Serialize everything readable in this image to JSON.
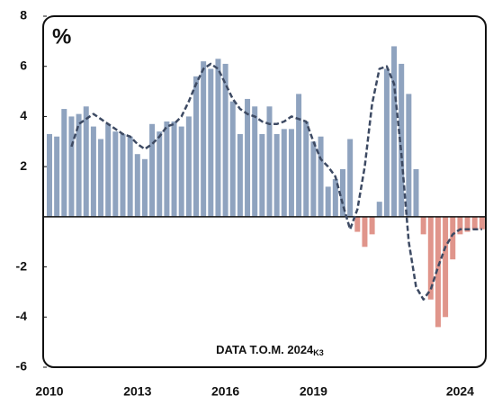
{
  "chart_data": {
    "type": "bar",
    "unit_label": "%",
    "annotation": "DATA T.O.M. 2024",
    "annotation_sub": "K3",
    "categories": [
      "2010",
      null,
      null,
      null,
      null,
      null,
      null,
      null,
      null,
      null,
      null,
      null,
      "2013",
      null,
      null,
      null,
      null,
      null,
      null,
      null,
      null,
      null,
      null,
      null,
      "2016",
      null,
      null,
      null,
      null,
      null,
      null,
      null,
      null,
      null,
      null,
      null,
      "2019",
      null,
      null,
      null,
      null,
      null,
      null,
      null,
      null,
      null,
      null,
      null,
      null,
      null,
      null,
      null,
      null,
      null,
      null,
      null,
      "2024",
      null,
      null,
      null
    ],
    "values": [
      3.3,
      3.2,
      4.3,
      4.0,
      4.1,
      4.4,
      3.6,
      3.1,
      3.7,
      3.4,
      3.3,
      3.2,
      2.5,
      2.3,
      3.7,
      3.4,
      3.8,
      3.8,
      3.6,
      4.0,
      5.6,
      6.2,
      5.9,
      6.3,
      6.1,
      4.6,
      3.3,
      4.7,
      4.4,
      3.3,
      4.4,
      3.3,
      3.5,
      3.5,
      4.9,
      3.8,
      3.0,
      3.2,
      1.2,
      1.5,
      1.9,
      3.1,
      -0.6,
      -1.2,
      -0.7,
      0.6,
      5.9,
      6.8,
      6.1,
      4.9,
      1.9,
      -0.7,
      -3.3,
      -4.4,
      -4.0,
      -1.7,
      -0.7,
      -0.6,
      -0.5,
      -0.5
    ],
    "trend": [
      null,
      null,
      null,
      2.8,
      3.7,
      3.9,
      4.1,
      3.9,
      3.7,
      3.5,
      3.3,
      3.2,
      2.9,
      2.7,
      2.9,
      3.2,
      3.6,
      3.7,
      4.0,
      4.6,
      5.3,
      5.9,
      6.1,
      5.9,
      5.3,
      4.7,
      4.3,
      4.1,
      4.0,
      3.8,
      3.7,
      3.7,
      3.8,
      4.0,
      3.9,
      3.8,
      3.0,
      2.3,
      2.0,
      1.6,
      0.5,
      -0.5,
      0.3,
      2.0,
      4.5,
      5.9,
      6.0,
      5.3,
      2.5,
      -1.0,
      -2.8,
      -3.3,
      -2.9,
      -2.0,
      -1.2,
      -0.7,
      -0.5,
      -0.5,
      -0.5,
      -0.5
    ],
    "positive_color": "#8fa3bf",
    "negative_color": "#e0958b",
    "trend_color": "#3d4a63",
    "negative_tick_color": "#c0504d",
    "ylim": [
      -6,
      8
    ],
    "yticks": [
      -6,
      -4,
      -2,
      2,
      4,
      6,
      8
    ]
  }
}
